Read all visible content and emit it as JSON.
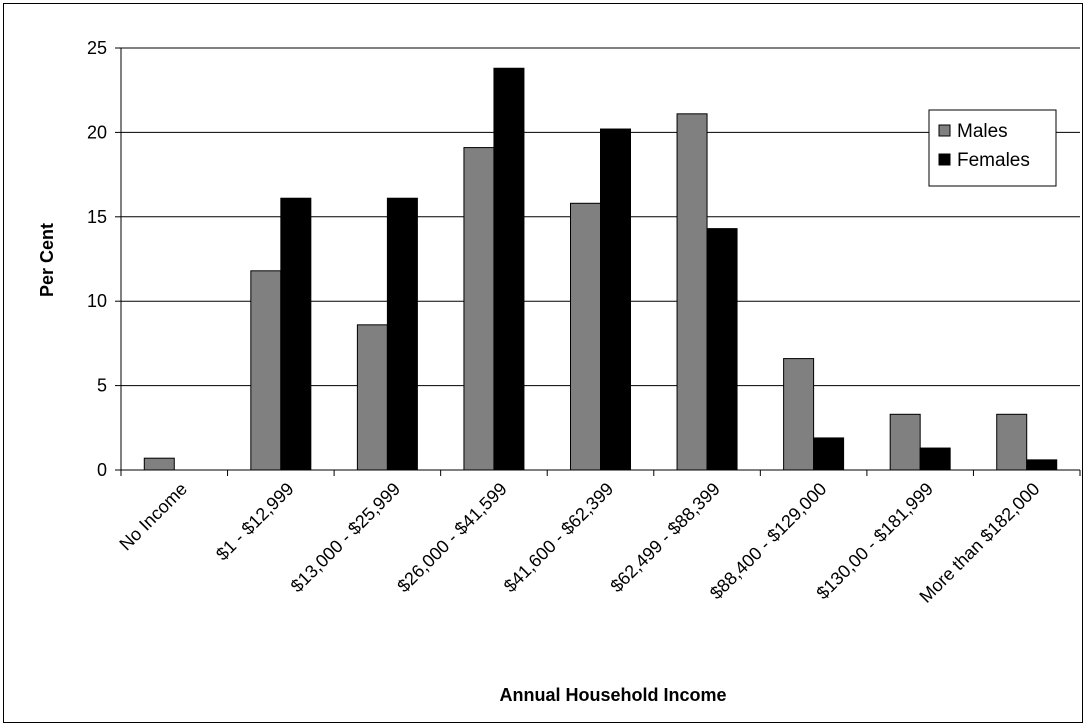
{
  "chart_data": {
    "type": "bar",
    "title": "",
    "xlabel": "Annual Household Income",
    "ylabel": "Per Cent",
    "ylim": [
      0,
      25
    ],
    "yticks": [
      "0",
      "5",
      "10",
      "15",
      "20",
      "25"
    ],
    "grid": true,
    "legend_position": "top-right",
    "categories": [
      "No Income",
      "$1 - $12,999",
      "$13,000 - $25,999",
      "$26,000 - $41,599",
      "$41,600 - $62,399",
      "$62,499 - $88,399",
      "$88,400 - $129,000",
      "$130,00 - $181,999",
      "More than $182,000"
    ],
    "series": [
      {
        "name": "Males",
        "color": "#808080",
        "values": [
          0.7,
          11.8,
          8.6,
          19.1,
          15.8,
          21.1,
          6.6,
          3.3,
          3.3
        ]
      },
      {
        "name": "Females",
        "color": "#000000",
        "values": [
          0,
          16.1,
          16.1,
          23.8,
          20.2,
          14.3,
          1.9,
          1.3,
          0.6
        ]
      }
    ]
  }
}
